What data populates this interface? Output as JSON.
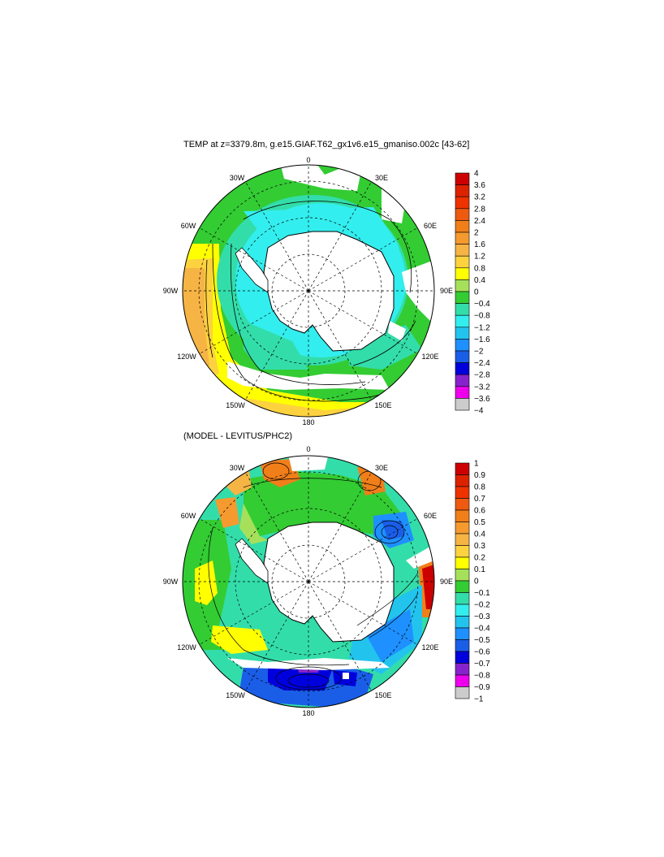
{
  "panels": [
    {
      "title": "TEMP at z=3379.8m, g.e15.GIAF.T62_gx1v6.e15_gmaniso.002c [43-62]",
      "lon_labels": [
        "0",
        "30E",
        "60E",
        "90E",
        "120E",
        "150E",
        "180",
        "150W",
        "120W",
        "90W",
        "60W",
        "30W"
      ],
      "colorbar": {
        "labels": [
          "4",
          "3.6",
          "3.2",
          "2.8",
          "2.4",
          "2",
          "1.6",
          "1.2",
          "0.8",
          "0.4",
          "0",
          "−0.4",
          "−0.8",
          "−1.2",
          "−1.6",
          "−2",
          "−2.4",
          "−2.8",
          "−3.2",
          "−3.6",
          "−4"
        ],
        "colors": [
          "#cc0000",
          "#dd2200",
          "#ee3300",
          "#ee5a10",
          "#f07f1a",
          "#f59a2e",
          "#f6b445",
          "#fcd23f",
          "#ffff00",
          "#a6e05a",
          "#33cc33",
          "#33ddaa",
          "#33eeee",
          "#22c4ee",
          "#1e90ff",
          "#1a5ee8",
          "#0000dd",
          "#8822cc",
          "#ee00ee",
          "#cccccc",
          "#666666"
        ]
      }
    },
    {
      "title": "(MODEL - LEVITUS/PHC2)",
      "lon_labels": [
        "0",
        "30E",
        "60E",
        "90E",
        "120E",
        "150E",
        "180",
        "150W",
        "120W",
        "90W",
        "60W",
        "30W"
      ],
      "colorbar": {
        "labels": [
          "1",
          "0.9",
          "0.8",
          "0.7",
          "0.6",
          "0.5",
          "0.4",
          "0.3",
          "0.2",
          "0.1",
          "0",
          "−0.1",
          "−0.2",
          "−0.3",
          "−0.4",
          "−0.5",
          "−0.6",
          "−0.7",
          "−0.8",
          "−0.9",
          "−1"
        ],
        "colors": [
          "#cc0000",
          "#dd2200",
          "#ee3300",
          "#ee5a10",
          "#f07f1a",
          "#f59a2e",
          "#f6b445",
          "#fcd23f",
          "#ffff00",
          "#a6e05a",
          "#33cc33",
          "#33ddaa",
          "#33eeee",
          "#22c4ee",
          "#1e90ff",
          "#1a5ee8",
          "#0000dd",
          "#8822cc",
          "#ee00ee",
          "#cccccc",
          "#666666"
        ]
      }
    }
  ]
}
